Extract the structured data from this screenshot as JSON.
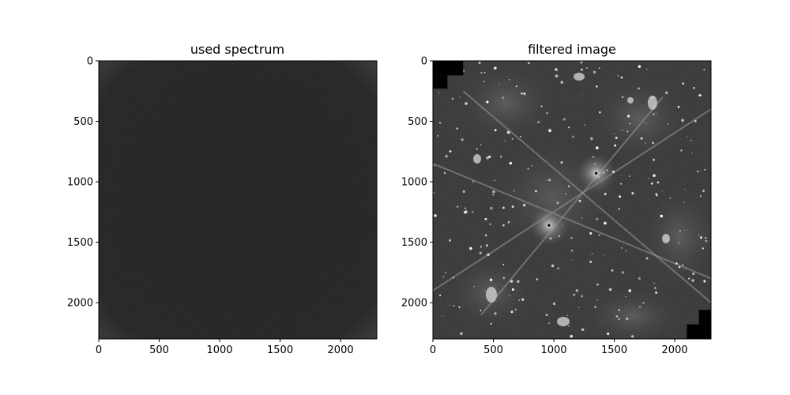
{
  "chart_data": [
    {
      "type": "heatmap",
      "title": "used spectrum",
      "xlabel": "",
      "ylabel": "",
      "xlim": [
        0,
        2300
      ],
      "ylim": [
        2300,
        0
      ],
      "xticks": [
        0,
        500,
        1000,
        1500,
        2000
      ],
      "yticks": [
        0,
        500,
        1000,
        1500,
        2000
      ],
      "colormap": "gray",
      "dominant_color": "#252525",
      "grid": false
    },
    {
      "type": "heatmap",
      "title": "filtered image",
      "xlabel": "",
      "ylabel": "",
      "xlim": [
        0,
        2300
      ],
      "ylim": [
        2300,
        0
      ],
      "xticks": [
        0,
        500,
        1000,
        1500,
        2000
      ],
      "yticks": [
        0,
        500,
        1000,
        1500,
        2000
      ],
      "colormap": "gray",
      "grid": false,
      "features": {
        "bright_sources": [
          {
            "x": 1350,
            "y": 930
          },
          {
            "x": 960,
            "y": 1360
          }
        ],
        "diffraction_spikes": [
          {
            "from": [
              0,
              850
            ],
            "to": [
              2300,
              1800
            ]
          },
          {
            "from": [
              0,
              1900
            ],
            "to": [
              2300,
              400
            ]
          },
          {
            "from": [
              250,
              250
            ],
            "to": [
              2300,
              2000
            ]
          },
          {
            "from": [
              400,
              2100
            ],
            "to": [
              1900,
              300
            ]
          }
        ],
        "masked_corners": [
          {
            "x": [
              0,
              250
            ],
            "y": [
              0,
              120
            ]
          },
          {
            "x": [
              0,
              120
            ],
            "y": [
              120,
              230
            ]
          },
          {
            "x": [
              2100,
              2300
            ],
            "y": [
              2180,
              2300
            ]
          },
          {
            "x": [
              2200,
              2300
            ],
            "y": [
              2060,
              2180
            ]
          }
        ]
      }
    }
  ]
}
